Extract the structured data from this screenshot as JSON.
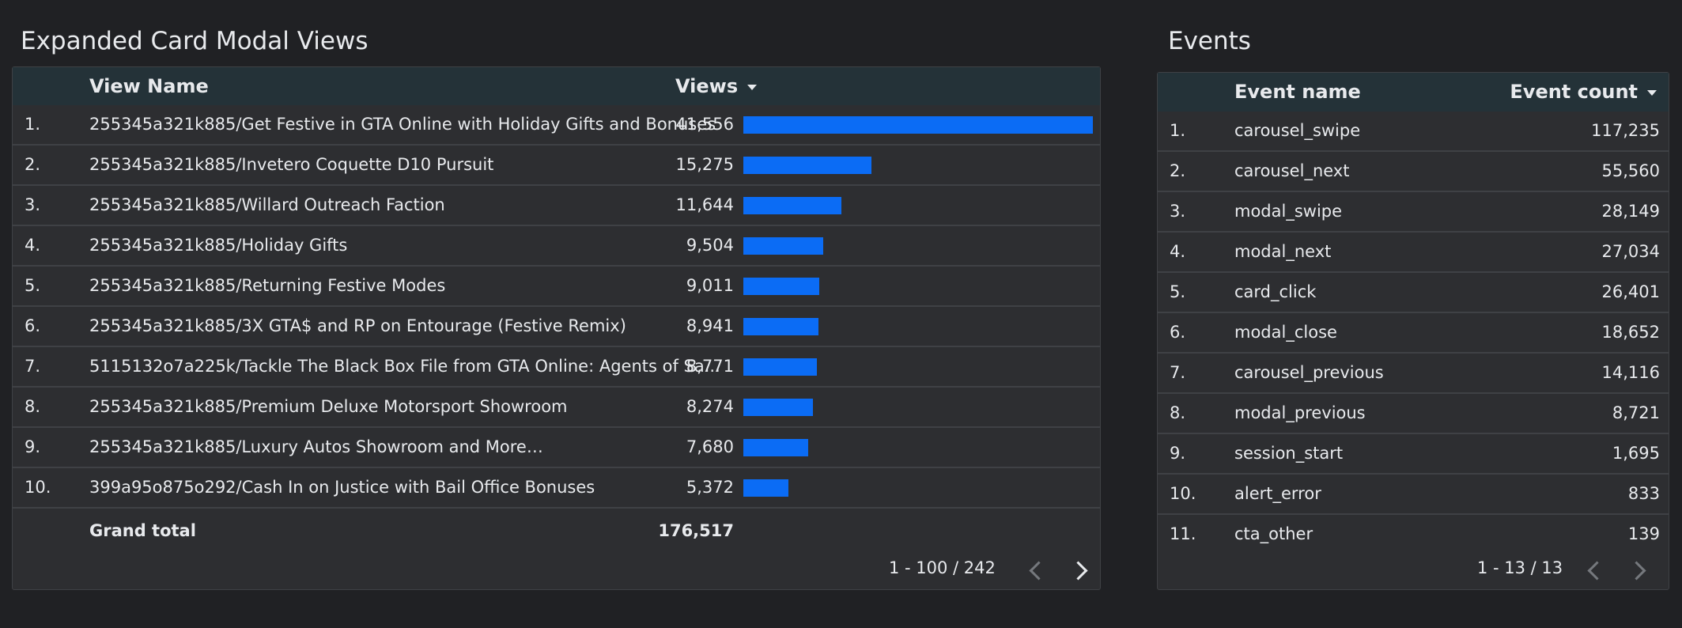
{
  "views_panel": {
    "title": "Expanded Card Modal Views",
    "columns": {
      "name": "View Name",
      "views": "Views"
    },
    "max_views": 41556,
    "rows": [
      {
        "num": "1.",
        "name": "255345a321k885/Get Festive in GTA Online with Holiday Gifts and Bonuses",
        "views": "41,556",
        "value": 41556
      },
      {
        "num": "2.",
        "name": "255345a321k885/Invetero Coquette D10 Pursuit",
        "views": "15,275",
        "value": 15275
      },
      {
        "num": "3.",
        "name": "255345a321k885/Willard Outreach Faction",
        "views": "11,644",
        "value": 11644
      },
      {
        "num": "4.",
        "name": "255345a321k885/Holiday Gifts",
        "views": "9,504",
        "value": 9504
      },
      {
        "num": "5.",
        "name": "255345a321k885/Returning Festive Modes",
        "views": "9,011",
        "value": 9011
      },
      {
        "num": "6.",
        "name": "255345a321k885/3X GTA$ and RP on Entourage (Festive Remix)",
        "views": "8,941",
        "value": 8941
      },
      {
        "num": "7.",
        "name": "5115132o7a225k/Tackle The Black Box File from GTA Online: Agents of Sa...",
        "views": "8,771",
        "value": 8771
      },
      {
        "num": "8.",
        "name": "255345a321k885/Premium Deluxe Motorsport Showroom",
        "views": "8,274",
        "value": 8274
      },
      {
        "num": "9.",
        "name": "255345a321k885/Luxury Autos Showroom and More…",
        "views": "7,680",
        "value": 7680
      },
      {
        "num": "10.",
        "name": "399a95o875o292/Cash In on Justice with Bail Office Bonuses",
        "views": "5,372",
        "value": 5372
      }
    ],
    "total_label": "Grand total",
    "total_value": "176,517",
    "pagination": "1 - 100 / 242",
    "bar_color": "#0b6cf5"
  },
  "events_panel": {
    "title": "Events",
    "columns": {
      "name": "Event name",
      "count": "Event count"
    },
    "rows": [
      {
        "num": "1.",
        "name": "carousel_swipe",
        "count": "117,235"
      },
      {
        "num": "2.",
        "name": "carousel_next",
        "count": "55,560"
      },
      {
        "num": "3.",
        "name": "modal_swipe",
        "count": "28,149"
      },
      {
        "num": "4.",
        "name": "modal_next",
        "count": "27,034"
      },
      {
        "num": "5.",
        "name": "card_click",
        "count": "26,401"
      },
      {
        "num": "6.",
        "name": "modal_close",
        "count": "18,652"
      },
      {
        "num": "7.",
        "name": "carousel_previous",
        "count": "14,116"
      },
      {
        "num": "8.",
        "name": "modal_previous",
        "count": "8,721"
      },
      {
        "num": "9.",
        "name": "session_start",
        "count": "1,695"
      },
      {
        "num": "10.",
        "name": "alert_error",
        "count": "833"
      },
      {
        "num": "11.",
        "name": "cta_other",
        "count": "139"
      }
    ],
    "pagination": "1 - 13 / 13"
  }
}
